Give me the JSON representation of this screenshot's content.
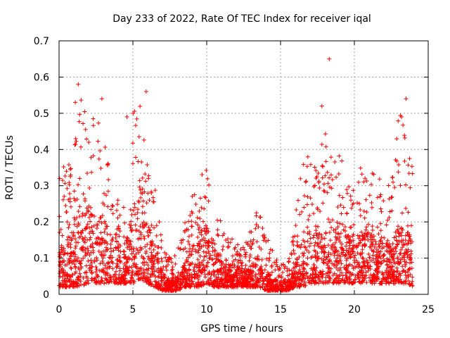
{
  "chart_data": {
    "type": "scatter",
    "title": "Day 233 of 2022, Rate Of TEC Index for receiver iqal",
    "xlabel": "GPS time / hours",
    "ylabel": "ROTI / TECUs",
    "xlim": [
      0,
      25
    ],
    "ylim": [
      0,
      0.7
    ],
    "xticks": [
      0,
      5,
      10,
      15,
      20,
      25
    ],
    "yticks": [
      0,
      0.1,
      0.2,
      0.3,
      0.4,
      0.5,
      0.6,
      0.7
    ],
    "xtick_labels": [
      "0",
      "5",
      "10",
      "15",
      "20",
      "25"
    ],
    "ytick_labels": [
      "0",
      "0.1",
      "0.2",
      "0.3",
      "0.4",
      "0.5",
      "0.6",
      "0.7"
    ],
    "grid": true,
    "marker": "+",
    "color": "#ff0000",
    "series": [
      {
        "name": "ROTI",
        "points_note": "dense cloud approximated by the sampled envelope below",
        "envelope": {
          "x": [
            0,
            0.5,
            1,
            1.5,
            2,
            2.5,
            3,
            3.5,
            4,
            4.5,
            5,
            5.5,
            6,
            6.5,
            7,
            7.5,
            8,
            8.5,
            9,
            9.5,
            10,
            10.5,
            11,
            11.5,
            12,
            12.5,
            13,
            13.5,
            14,
            14.5,
            15,
            15.5,
            16,
            16.5,
            17,
            17.5,
            18,
            18.5,
            19,
            19.5,
            20,
            20.5,
            21,
            21.5,
            22,
            22.5,
            23,
            23.5,
            24
          ],
          "upper": [
            0.38,
            0.34,
            0.4,
            0.55,
            0.52,
            0.47,
            0.5,
            0.3,
            0.26,
            0.24,
            0.52,
            0.55,
            0.35,
            0.3,
            0.14,
            0.1,
            0.12,
            0.2,
            0.28,
            0.32,
            0.38,
            0.25,
            0.2,
            0.16,
            0.15,
            0.14,
            0.2,
            0.24,
            0.18,
            0.12,
            0.09,
            0.08,
            0.22,
            0.38,
            0.38,
            0.34,
            0.5,
            0.37,
            0.4,
            0.33,
            0.32,
            0.36,
            0.35,
            0.33,
            0.32,
            0.3,
            0.52,
            0.46,
            0.34
          ],
          "lower": [
            0.02,
            0.02,
            0.02,
            0.02,
            0.03,
            0.03,
            0.03,
            0.03,
            0.03,
            0.03,
            0.03,
            0.04,
            0.03,
            0.02,
            0.01,
            0.01,
            0.01,
            0.02,
            0.02,
            0.02,
            0.03,
            0.02,
            0.02,
            0.02,
            0.02,
            0.02,
            0.02,
            0.02,
            0.01,
            0.01,
            0.01,
            0.01,
            0.02,
            0.02,
            0.03,
            0.03,
            0.03,
            0.03,
            0.03,
            0.03,
            0.03,
            0.03,
            0.03,
            0.03,
            0.03,
            0.03,
            0.03,
            0.03,
            0.02
          ],
          "typical": [
            0.1,
            0.09,
            0.14,
            0.2,
            0.18,
            0.15,
            0.16,
            0.12,
            0.1,
            0.1,
            0.18,
            0.24,
            0.14,
            0.1,
            0.04,
            0.03,
            0.04,
            0.06,
            0.1,
            0.12,
            0.15,
            0.09,
            0.07,
            0.06,
            0.06,
            0.05,
            0.06,
            0.07,
            0.05,
            0.03,
            0.03,
            0.03,
            0.06,
            0.12,
            0.13,
            0.12,
            0.14,
            0.13,
            0.14,
            0.12,
            0.12,
            0.13,
            0.13,
            0.12,
            0.12,
            0.11,
            0.14,
            0.13,
            0.1
          ]
        },
        "outliers": [
          {
            "x": 18.3,
            "y": 0.65
          },
          {
            "x": 1.3,
            "y": 0.58
          },
          {
            "x": 5.9,
            "y": 0.56
          },
          {
            "x": 2.9,
            "y": 0.54
          },
          {
            "x": 23.5,
            "y": 0.54
          },
          {
            "x": 17.8,
            "y": 0.52
          },
          {
            "x": 1.1,
            "y": 0.53
          },
          {
            "x": 4.6,
            "y": 0.49
          },
          {
            "x": 23.2,
            "y": 0.49
          }
        ]
      }
    ]
  }
}
